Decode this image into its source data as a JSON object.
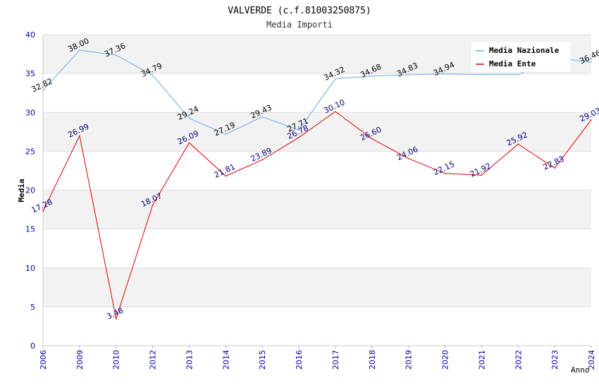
{
  "chart_data": {
    "type": "line",
    "title": "VALVERDE (c.f.81003250875)",
    "subtitle": "Media Importi",
    "xlabel": "Anno",
    "ylabel": "Media",
    "ylim": [
      0,
      40
    ],
    "yticks": [
      "0",
      "5",
      "10",
      "15",
      "20",
      "25",
      "30",
      "35",
      "40"
    ],
    "categories": [
      "2006",
      "2009",
      "2010",
      "2012",
      "2013",
      "2014",
      "2015",
      "2016",
      "2017",
      "2018",
      "2019",
      "2020",
      "2021",
      "2022",
      "2023",
      "2024"
    ],
    "legend_position": "top-right",
    "series": [
      {
        "name": "Media Nazionale",
        "color": "#66aaee",
        "label_color": "#000000",
        "values": [
          32.82,
          38.0,
          37.36,
          34.79,
          29.24,
          27.19,
          29.43,
          27.71,
          34.32,
          34.68,
          34.83,
          34.94,
          34.85,
          34.85,
          37.0,
          36.46
        ],
        "labels": [
          "32.82",
          "38.00",
          "37.36",
          "34.79",
          "29.24",
          "27.19",
          "29.43",
          "27.71",
          "34.32",
          "34.68",
          "34.83",
          "34.94",
          "",
          "",
          "",
          "36.46"
        ]
      },
      {
        "name": "Media Ente",
        "color": "#dd0000",
        "label_color": "#000080",
        "values": [
          17.28,
          26.99,
          3.48,
          18.07,
          26.09,
          21.81,
          23.89,
          26.78,
          30.1,
          26.6,
          24.06,
          22.15,
          21.92,
          25.92,
          22.83,
          29.03
        ],
        "labels": [
          "17.28",
          "26.99",
          "3.48",
          "18.07",
          "26.09",
          "21.81",
          "23.89",
          "26.78",
          "30.10",
          "26.60",
          "24.06",
          "22.15",
          "21.92",
          "25.92",
          "22.83",
          "29.03"
        ]
      }
    ]
  }
}
